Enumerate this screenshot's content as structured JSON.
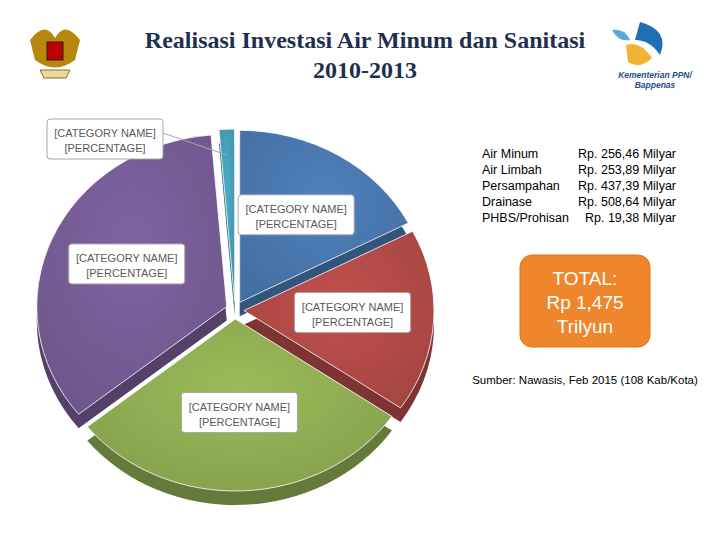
{
  "chart_data": {
    "type": "pie",
    "title": "Realisasi Investasi Air Minum dan Sanitasi 2010-2013",
    "categories": [
      "Air Minum",
      "Air Limbah",
      "Persampahan",
      "Drainase",
      "PHBS/Prohisan"
    ],
    "values": [
      256.46,
      253.89,
      437.39,
      508.64,
      19.38
    ],
    "value_labels": [
      "Rp. 256,46 Milyar",
      "Rp. 253,89 Milyar",
      "Rp. 437,39 Milyar",
      "Rp. 508,64 Milyar",
      "Rp. 19,38 Milyar"
    ],
    "colors": [
      "#4f81bd",
      "#c0504d",
      "#9bbb59",
      "#8064a2",
      "#4bacc6"
    ],
    "legend": "right",
    "slice_labels": [
      {
        "category": "[CATEGORY NAME]",
        "percentage": "[PERCENTAGE]"
      },
      {
        "category": "[CATEGORY NAME]",
        "percentage": "[PERCENTAGE]"
      },
      {
        "category": "[CATEGORY NAME]",
        "percentage": "[PERCENTAGE]"
      },
      {
        "category": "[CATEGORY NAME]",
        "percentage": "[PERCENTAGE]"
      },
      {
        "category": "[CATEGORY NAME]",
        "percentage": "[PERCENTAGE]"
      }
    ],
    "annotations": {
      "total": [
        "TOTAL:",
        "Rp 1,475",
        "Trilyun"
      ],
      "source": "Sumber: Nawasis, Feb 2015 (108 Kab/Kota)",
      "logo_text": [
        "Kementerian PPN/",
        "Bappenas"
      ]
    }
  }
}
